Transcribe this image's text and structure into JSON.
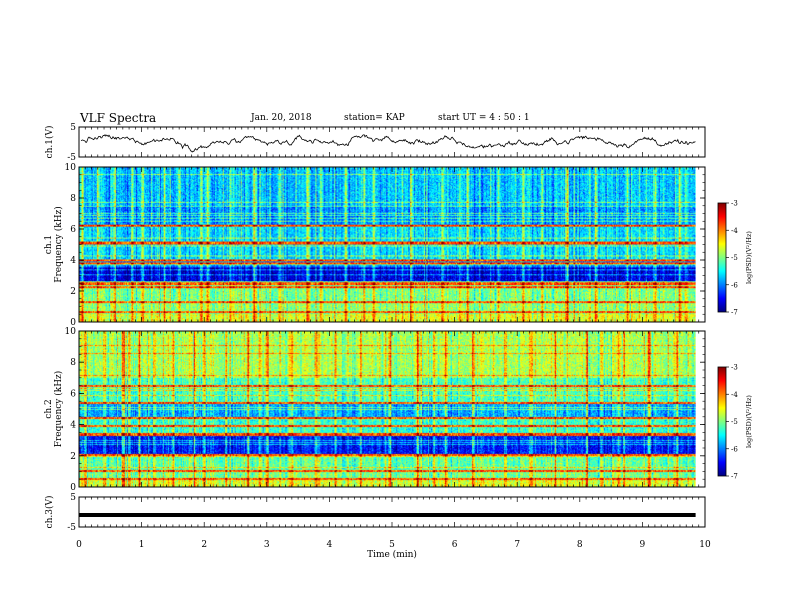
{
  "header": {
    "title": "VLF Spectra",
    "date": "Jan. 20, 2018",
    "station": "station= KAP",
    "start": "start UT =  4 : 50 : 1"
  },
  "colors": {
    "colormap": [
      "#00007f",
      "#0000ff",
      "#0080ff",
      "#00ffff",
      "#80ff80",
      "#ffff00",
      "#ff8000",
      "#ff0000",
      "#7f0000"
    ]
  },
  "chart_data": [
    {
      "type": "line",
      "name": "ch1-waveform",
      "ylabel": "ch.1(V)",
      "ylim": [
        -5,
        5
      ],
      "yticks": [
        "5",
        "-5"
      ],
      "xlim": [
        0,
        10
      ],
      "shape": "noisy waveform oscillating around 0 V with amplitude about ±2.5 V, ending near 9.85 min"
    },
    {
      "type": "heatmap",
      "name": "ch1-spectrogram",
      "ylabel": "ch.1 Frequency (kHz)",
      "ylim": [
        0,
        10
      ],
      "yticks": [
        "0",
        "2",
        "4",
        "6",
        "8",
        "10"
      ],
      "xlim": [
        0,
        9.85
      ],
      "colorbar": {
        "label": "log(PSD)(V²/Hz)",
        "range": [
          -7,
          -3
        ],
        "ticks": [
          "-3",
          "-4",
          "-5",
          "-6",
          "-7"
        ]
      },
      "bands": [
        {
          "from": 0.0,
          "to": 0.5,
          "level": -4.6
        },
        {
          "from": 0.5,
          "to": 1.2,
          "level": -4.9
        },
        {
          "from": 1.2,
          "to": 2.6,
          "level": -5.0
        },
        {
          "from": 2.6,
          "to": 3.5,
          "level": -6.6
        },
        {
          "from": 3.5,
          "to": 3.9,
          "level": -6.0
        },
        {
          "from": 3.9,
          "to": 5.5,
          "level": -5.6
        },
        {
          "from": 5.5,
          "to": 6.3,
          "level": -5.6
        },
        {
          "from": 6.3,
          "to": 7.5,
          "level": -5.9
        },
        {
          "from": 7.5,
          "to": 10.0,
          "level": -5.7
        }
      ],
      "lines_khz": [
        0.6,
        1.25,
        2.25,
        2.45,
        3.8,
        3.95,
        5.1,
        6.2
      ],
      "bursts_min": [
        0.05,
        0.3,
        0.55,
        0.85,
        1.0,
        1.35,
        1.6,
        1.95,
        2.05,
        2.4,
        2.8,
        3.2,
        3.65,
        3.85,
        4.25,
        4.55,
        4.7,
        5.3,
        5.8,
        6.2,
        6.7,
        7.1,
        7.4,
        7.8,
        8.25,
        8.75,
        9.2,
        9.6
      ]
    },
    {
      "type": "heatmap",
      "name": "ch2-spectrogram",
      "ylabel": "ch.2 Frequency (kHz)",
      "ylim": [
        0,
        10
      ],
      "yticks": [
        "0",
        "2",
        "4",
        "6",
        "8",
        "10"
      ],
      "xlim": [
        0,
        9.85
      ],
      "colorbar": {
        "label": "log(PSD)(V²/Hz)",
        "range": [
          -7,
          -3
        ],
        "ticks": [
          "-3",
          "-4",
          "-5",
          "-6",
          "-7"
        ]
      },
      "bands": [
        {
          "from": 0.0,
          "to": 0.4,
          "level": -4.6
        },
        {
          "from": 0.4,
          "to": 1.0,
          "level": -5.0
        },
        {
          "from": 1.0,
          "to": 2.0,
          "level": -5.1
        },
        {
          "from": 2.0,
          "to": 3.3,
          "level": -6.4
        },
        {
          "from": 3.3,
          "to": 4.3,
          "level": -5.3
        },
        {
          "from": 4.3,
          "to": 5.3,
          "level": -5.8
        },
        {
          "from": 5.3,
          "to": 7.0,
          "level": -5.2
        },
        {
          "from": 7.0,
          "to": 10.0,
          "level": -4.8
        }
      ],
      "lines_khz": [
        0.5,
        1.0,
        2.05,
        3.35,
        3.9,
        4.4,
        5.4,
        6.5
      ],
      "bursts_min": [
        0.1,
        0.4,
        0.7,
        0.95,
        1.2,
        1.5,
        1.85,
        2.0,
        2.35,
        2.7,
        3.0,
        3.4,
        3.8,
        4.1,
        4.5,
        4.95,
        5.4,
        5.85,
        6.3,
        6.8,
        7.2,
        7.6,
        8.1,
        8.6,
        8.7,
        9.1,
        9.55
      ]
    },
    {
      "type": "line",
      "name": "ch3-waveform",
      "ylabel": "ch.3(V)",
      "ylim": [
        -5,
        5
      ],
      "yticks": [
        "5",
        "-5"
      ],
      "xlim": [
        0,
        10
      ],
      "xlabel": "Time (min)",
      "xticks": [
        "0",
        "1",
        "2",
        "3",
        "4",
        "5",
        "6",
        "7",
        "8",
        "9",
        "10"
      ],
      "shape": "flat line at about -1 V from 0 to 9.85 min"
    }
  ]
}
